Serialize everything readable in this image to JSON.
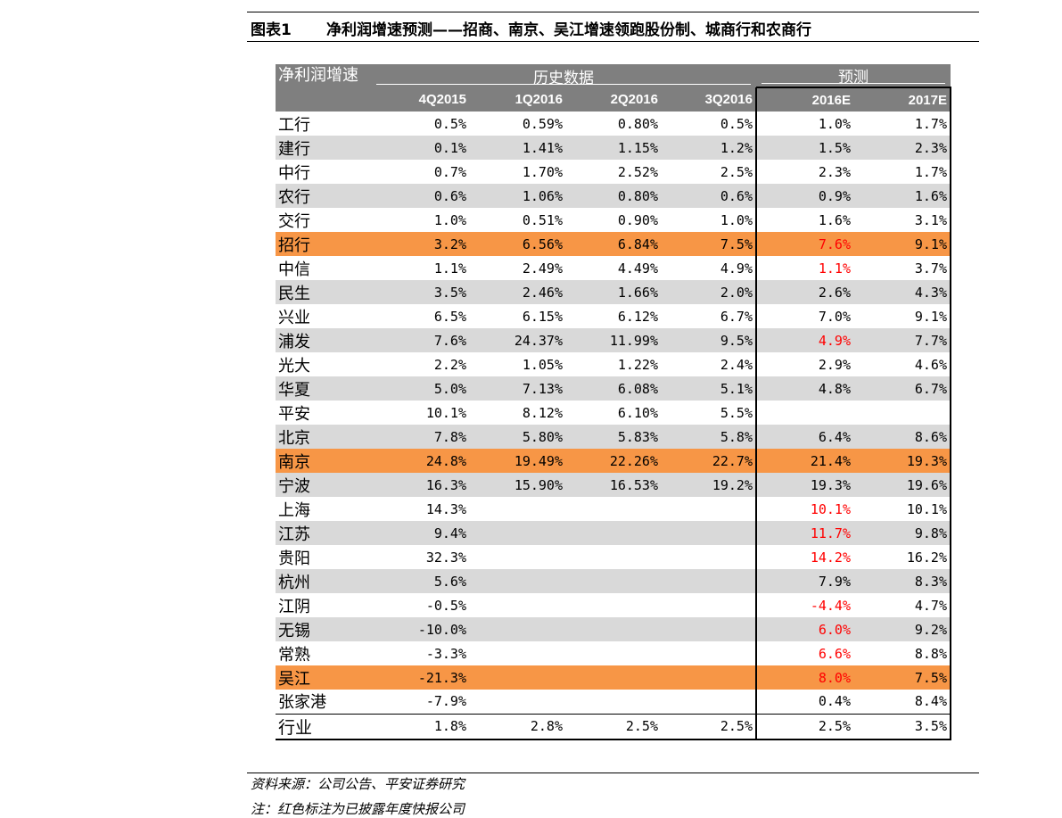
{
  "figure": {
    "label": "图表1",
    "title": "净利润增速预测——招商、南京、吴江增速领跑股份制、城商行和农商行"
  },
  "table": {
    "corner_label": "净利润增速",
    "group_history": "历史数据",
    "group_forecast": "预测",
    "columns": [
      "4Q2015",
      "1Q2016",
      "2Q2016",
      "3Q2016",
      "2016E",
      "2017E"
    ],
    "rows": [
      {
        "name": "工行",
        "values": [
          "0.5%",
          "0.59%",
          "0.80%",
          "0.5%",
          "1.0%",
          "1.7%"
        ],
        "style": "plain",
        "red": []
      },
      {
        "name": "建行",
        "values": [
          "0.1%",
          "1.41%",
          "1.15%",
          "1.2%",
          "1.5%",
          "2.3%"
        ],
        "style": "stripe",
        "red": []
      },
      {
        "name": "中行",
        "values": [
          "0.7%",
          "1.70%",
          "2.52%",
          "2.5%",
          "2.3%",
          "1.7%"
        ],
        "style": "plain",
        "red": []
      },
      {
        "name": "农行",
        "values": [
          "0.6%",
          "1.06%",
          "0.80%",
          "0.6%",
          "0.9%",
          "1.6%"
        ],
        "style": "stripe",
        "red": []
      },
      {
        "name": "交行",
        "values": [
          "1.0%",
          "0.51%",
          "0.90%",
          "1.0%",
          "1.6%",
          "3.1%"
        ],
        "style": "plain",
        "red": []
      },
      {
        "name": "招行",
        "values": [
          "3.2%",
          "6.56%",
          "6.84%",
          "7.5%",
          "7.6%",
          "9.1%"
        ],
        "style": "highlight",
        "red": [
          4
        ]
      },
      {
        "name": "中信",
        "values": [
          "1.1%",
          "2.49%",
          "4.49%",
          "4.9%",
          "1.1%",
          "3.7%"
        ],
        "style": "plain",
        "red": [
          4
        ]
      },
      {
        "name": "民生",
        "values": [
          "3.5%",
          "2.46%",
          "1.66%",
          "2.0%",
          "2.6%",
          "4.3%"
        ],
        "style": "stripe",
        "red": []
      },
      {
        "name": "兴业",
        "values": [
          "6.5%",
          "6.15%",
          "6.12%",
          "6.7%",
          "7.0%",
          "9.1%"
        ],
        "style": "plain",
        "red": []
      },
      {
        "name": "浦发",
        "values": [
          "7.6%",
          "24.37%",
          "11.99%",
          "9.5%",
          "4.9%",
          "7.7%"
        ],
        "style": "stripe",
        "red": [
          4
        ]
      },
      {
        "name": "光大",
        "values": [
          "2.2%",
          "1.05%",
          "1.22%",
          "2.4%",
          "2.9%",
          "4.6%"
        ],
        "style": "plain",
        "red": []
      },
      {
        "name": "华夏",
        "values": [
          "5.0%",
          "7.13%",
          "6.08%",
          "5.1%",
          "4.8%",
          "6.7%"
        ],
        "style": "stripe",
        "red": []
      },
      {
        "name": "平安",
        "values": [
          "10.1%",
          "8.12%",
          "6.10%",
          "5.5%",
          "",
          ""
        ],
        "style": "plain",
        "red": []
      },
      {
        "name": "北京",
        "values": [
          "7.8%",
          "5.80%",
          "5.83%",
          "5.8%",
          "6.4%",
          "8.6%"
        ],
        "style": "stripe",
        "red": []
      },
      {
        "name": "南京",
        "values": [
          "24.8%",
          "19.49%",
          "22.26%",
          "22.7%",
          "21.4%",
          "19.3%"
        ],
        "style": "highlight",
        "red": []
      },
      {
        "name": "宁波",
        "values": [
          "16.3%",
          "15.90%",
          "16.53%",
          "19.2%",
          "19.3%",
          "19.6%"
        ],
        "style": "stripe",
        "red": []
      },
      {
        "name": "上海",
        "values": [
          "14.3%",
          "",
          "",
          "",
          "10.1%",
          "10.1%"
        ],
        "style": "plain",
        "red": [
          4
        ]
      },
      {
        "name": "江苏",
        "values": [
          "9.4%",
          "",
          "",
          "",
          "11.7%",
          "9.8%"
        ],
        "style": "stripe",
        "red": [
          4
        ]
      },
      {
        "name": "贵阳",
        "values": [
          "32.3%",
          "",
          "",
          "",
          "14.2%",
          "16.2%"
        ],
        "style": "plain",
        "red": [
          4
        ]
      },
      {
        "name": "杭州",
        "values": [
          "5.6%",
          "",
          "",
          "",
          "7.9%",
          "8.3%"
        ],
        "style": "stripe",
        "red": []
      },
      {
        "name": "江阴",
        "values": [
          "-0.5%",
          "",
          "",
          "",
          "-4.4%",
          "4.7%"
        ],
        "style": "plain",
        "red": [
          4
        ]
      },
      {
        "name": "无锡",
        "values": [
          "-10.0%",
          "",
          "",
          "",
          "6.0%",
          "9.2%"
        ],
        "style": "stripe",
        "red": [
          4
        ]
      },
      {
        "name": "常熟",
        "values": [
          "-3.3%",
          "",
          "",
          "",
          "6.6%",
          "8.8%"
        ],
        "style": "plain",
        "red": [
          4
        ]
      },
      {
        "name": "吴江",
        "values": [
          "-21.3%",
          "",
          "",
          "",
          "8.0%",
          "7.5%"
        ],
        "style": "highlight",
        "red": [
          4
        ]
      },
      {
        "name": "张家港",
        "values": [
          "-7.9%",
          "",
          "",
          "",
          "0.4%",
          "8.4%"
        ],
        "style": "plain",
        "red": []
      }
    ],
    "total": {
      "name": "行业",
      "values": [
        "1.8%",
        "2.8%",
        "2.5%",
        "2.5%",
        "2.5%",
        "3.5%"
      ]
    }
  },
  "colors": {
    "header_bg": "#7f7f7f",
    "stripe_bg": "#d9d9d9",
    "highlight_bg": "#f79646",
    "forecast_red": "#ff0000"
  },
  "footer": {
    "source": "资料来源：公司公告、平安证券研究",
    "note": "注：红色标注为已披露年度快报公司"
  }
}
